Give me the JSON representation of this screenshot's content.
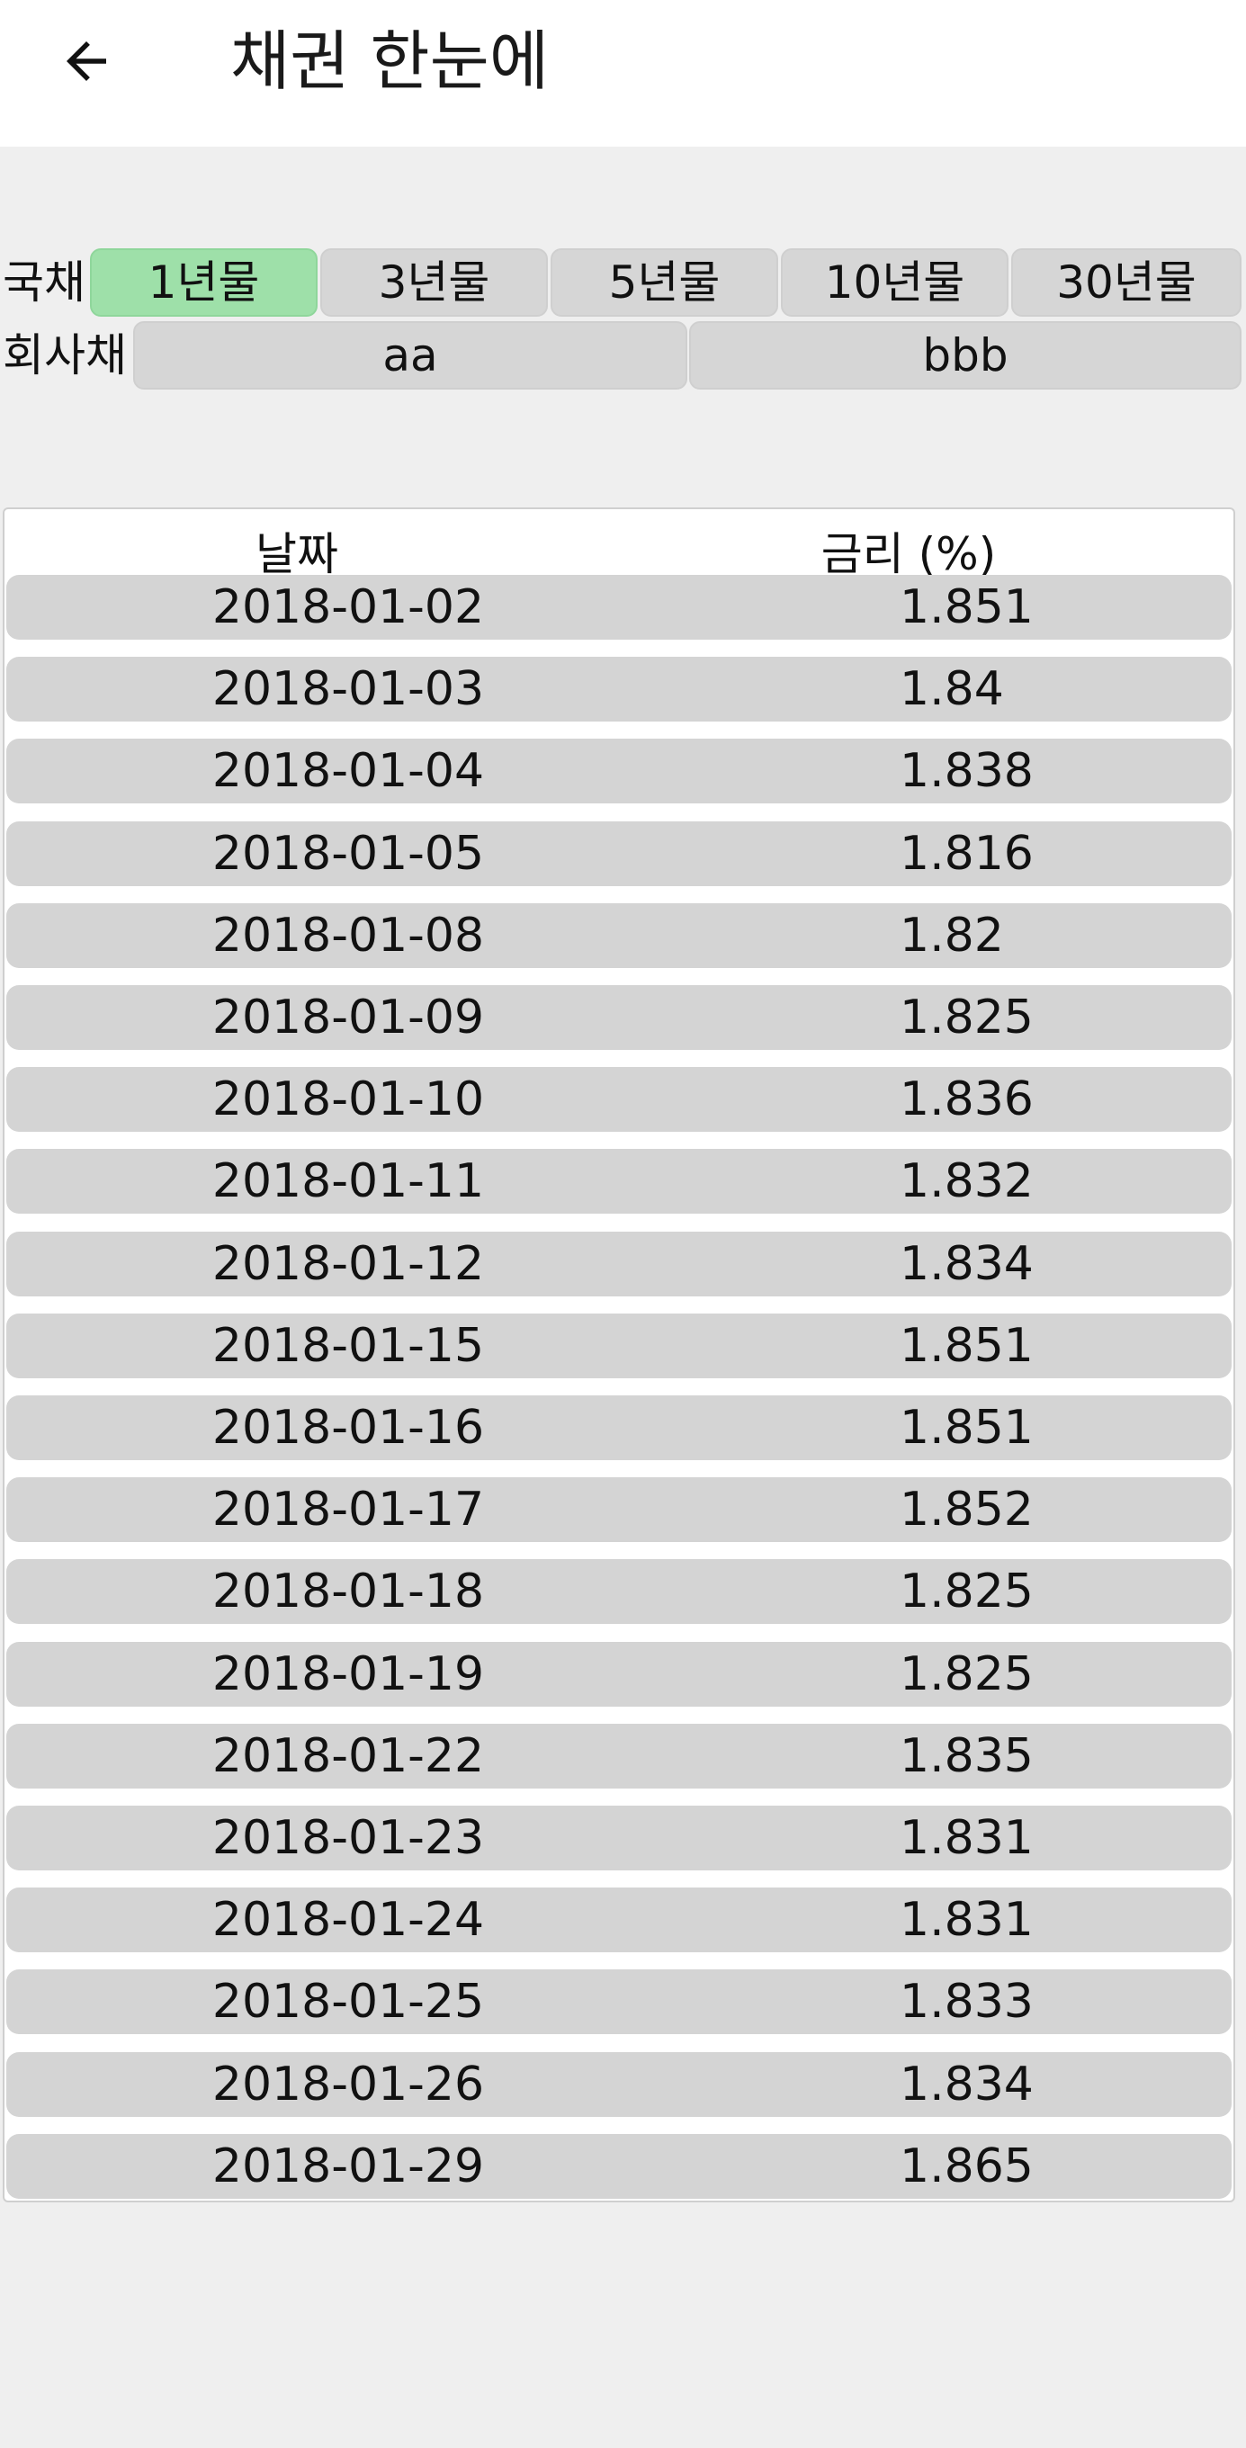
{
  "header": {
    "title": "채권 한눈에"
  },
  "filters": {
    "gov_label": "국채",
    "gov_options": [
      "1년물",
      "3년물",
      "5년물",
      "10년물",
      "30년물"
    ],
    "gov_selected": "1년물",
    "corp_label": "회사채",
    "corp_options": [
      "aa",
      "bbb"
    ]
  },
  "table": {
    "columns": [
      "날짜",
      "금리 (%)"
    ],
    "rows": [
      [
        "2018-01-02",
        "1.851"
      ],
      [
        "2018-01-03",
        "1.84"
      ],
      [
        "2018-01-04",
        "1.838"
      ],
      [
        "2018-01-05",
        "1.816"
      ],
      [
        "2018-01-08",
        "1.82"
      ],
      [
        "2018-01-09",
        "1.825"
      ],
      [
        "2018-01-10",
        "1.836"
      ],
      [
        "2018-01-11",
        "1.832"
      ],
      [
        "2018-01-12",
        "1.834"
      ],
      [
        "2018-01-15",
        "1.851"
      ],
      [
        "2018-01-16",
        "1.851"
      ],
      [
        "2018-01-17",
        "1.852"
      ],
      [
        "2018-01-18",
        "1.825"
      ],
      [
        "2018-01-19",
        "1.825"
      ],
      [
        "2018-01-22",
        "1.835"
      ],
      [
        "2018-01-23",
        "1.831"
      ],
      [
        "2018-01-24",
        "1.831"
      ],
      [
        "2018-01-25",
        "1.833"
      ],
      [
        "2018-01-26",
        "1.834"
      ],
      [
        "2018-01-29",
        "1.865"
      ]
    ]
  },
  "colors": {
    "selected": "#9ee0a9",
    "button": "#d6d6d6",
    "row": "#d4d4d4"
  },
  "icons": {
    "back": "arrow-left-icon"
  }
}
